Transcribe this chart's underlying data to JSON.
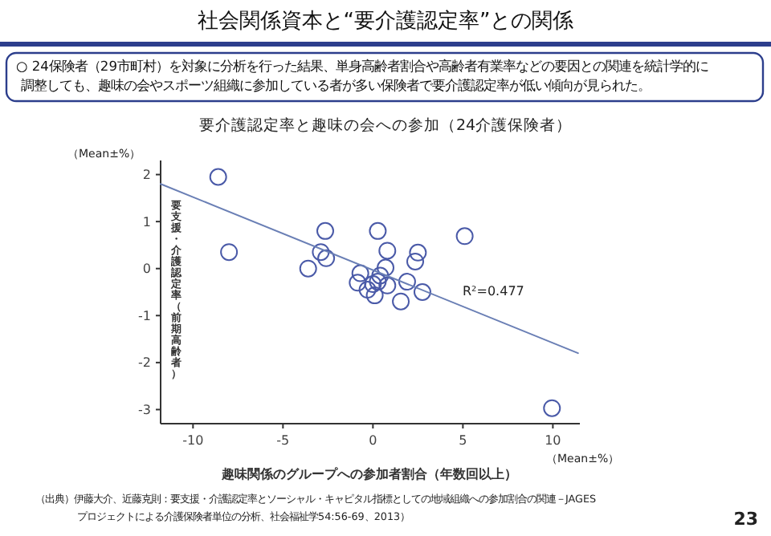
{
  "chart_data": {
    "type": "scatter",
    "title": "社会関係資本と“要介護認定率”との関係",
    "subtitle": "○ 24保険者（29市町村）を対象に分析を行った結果、単身高齢者割合や高齢者有業率などの要因との関連を統計学的に調整しても、趣味の会やスポーツ組織に参加している者が多い保険者で要介護認定率が低い傾向が見られた。",
    "xlabel": "趣味関係のグループへの参加者割合（年数回以上）",
    "ylabel": "要支援・介護認定率（前期高齢者）",
    "annotations": [
      "要介護認定率と趣味の会への参加（24介護保険者）",
      "（Mean±%）",
      "（Mean±%）",
      "R²=0.477",
      "（出典）伊藤大介、近藤克則：要支援・介護認定率とソーシャル・キャピタル指標としての地域組織への参加割合の関連－JAGES",
      "プロジェクトによる介護保険者単位の分析、社会福祉学54:56-69、2013）",
      "23"
    ],
    "series": [
      {
        "color": "#4a5aa8",
        "marker": "circle",
        "x": [
          -8.6,
          -8.0,
          -3.6,
          -2.65,
          -2.9,
          -2.6,
          0.27,
          0.8,
          0.7,
          -0.7,
          -0.85,
          0.0,
          0.27,
          0.8,
          0.1,
          1.55,
          1.9,
          2.75,
          2.35,
          2.5,
          5.1,
          9.95,
          -0.3,
          0.4
        ],
        "values": [
          1.95,
          0.35,
          0.0,
          0.8,
          0.35,
          0.22,
          0.8,
          0.38,
          0.02,
          -0.1,
          -0.3,
          -0.33,
          -0.28,
          -0.36,
          -0.57,
          -0.7,
          -0.28,
          -0.5,
          0.15,
          0.34,
          0.69,
          -2.97,
          -0.45,
          -0.15
        ]
      },
      {
        "type": "line",
        "color": "#6a7fb5",
        "marker": "none",
        "x": [
          -11.8,
          11.4
        ],
        "values": [
          1.8,
          -1.8
        ]
      }
    ],
    "xlim": [
      -11.8,
      11.5
    ],
    "ylim": [
      -3.3,
      2.3
    ],
    "xticks": [
      -10,
      -5,
      0,
      5,
      10
    ],
    "yticks": [
      -3,
      -2,
      -1,
      0,
      1,
      2
    ],
    "grid": false
  }
}
